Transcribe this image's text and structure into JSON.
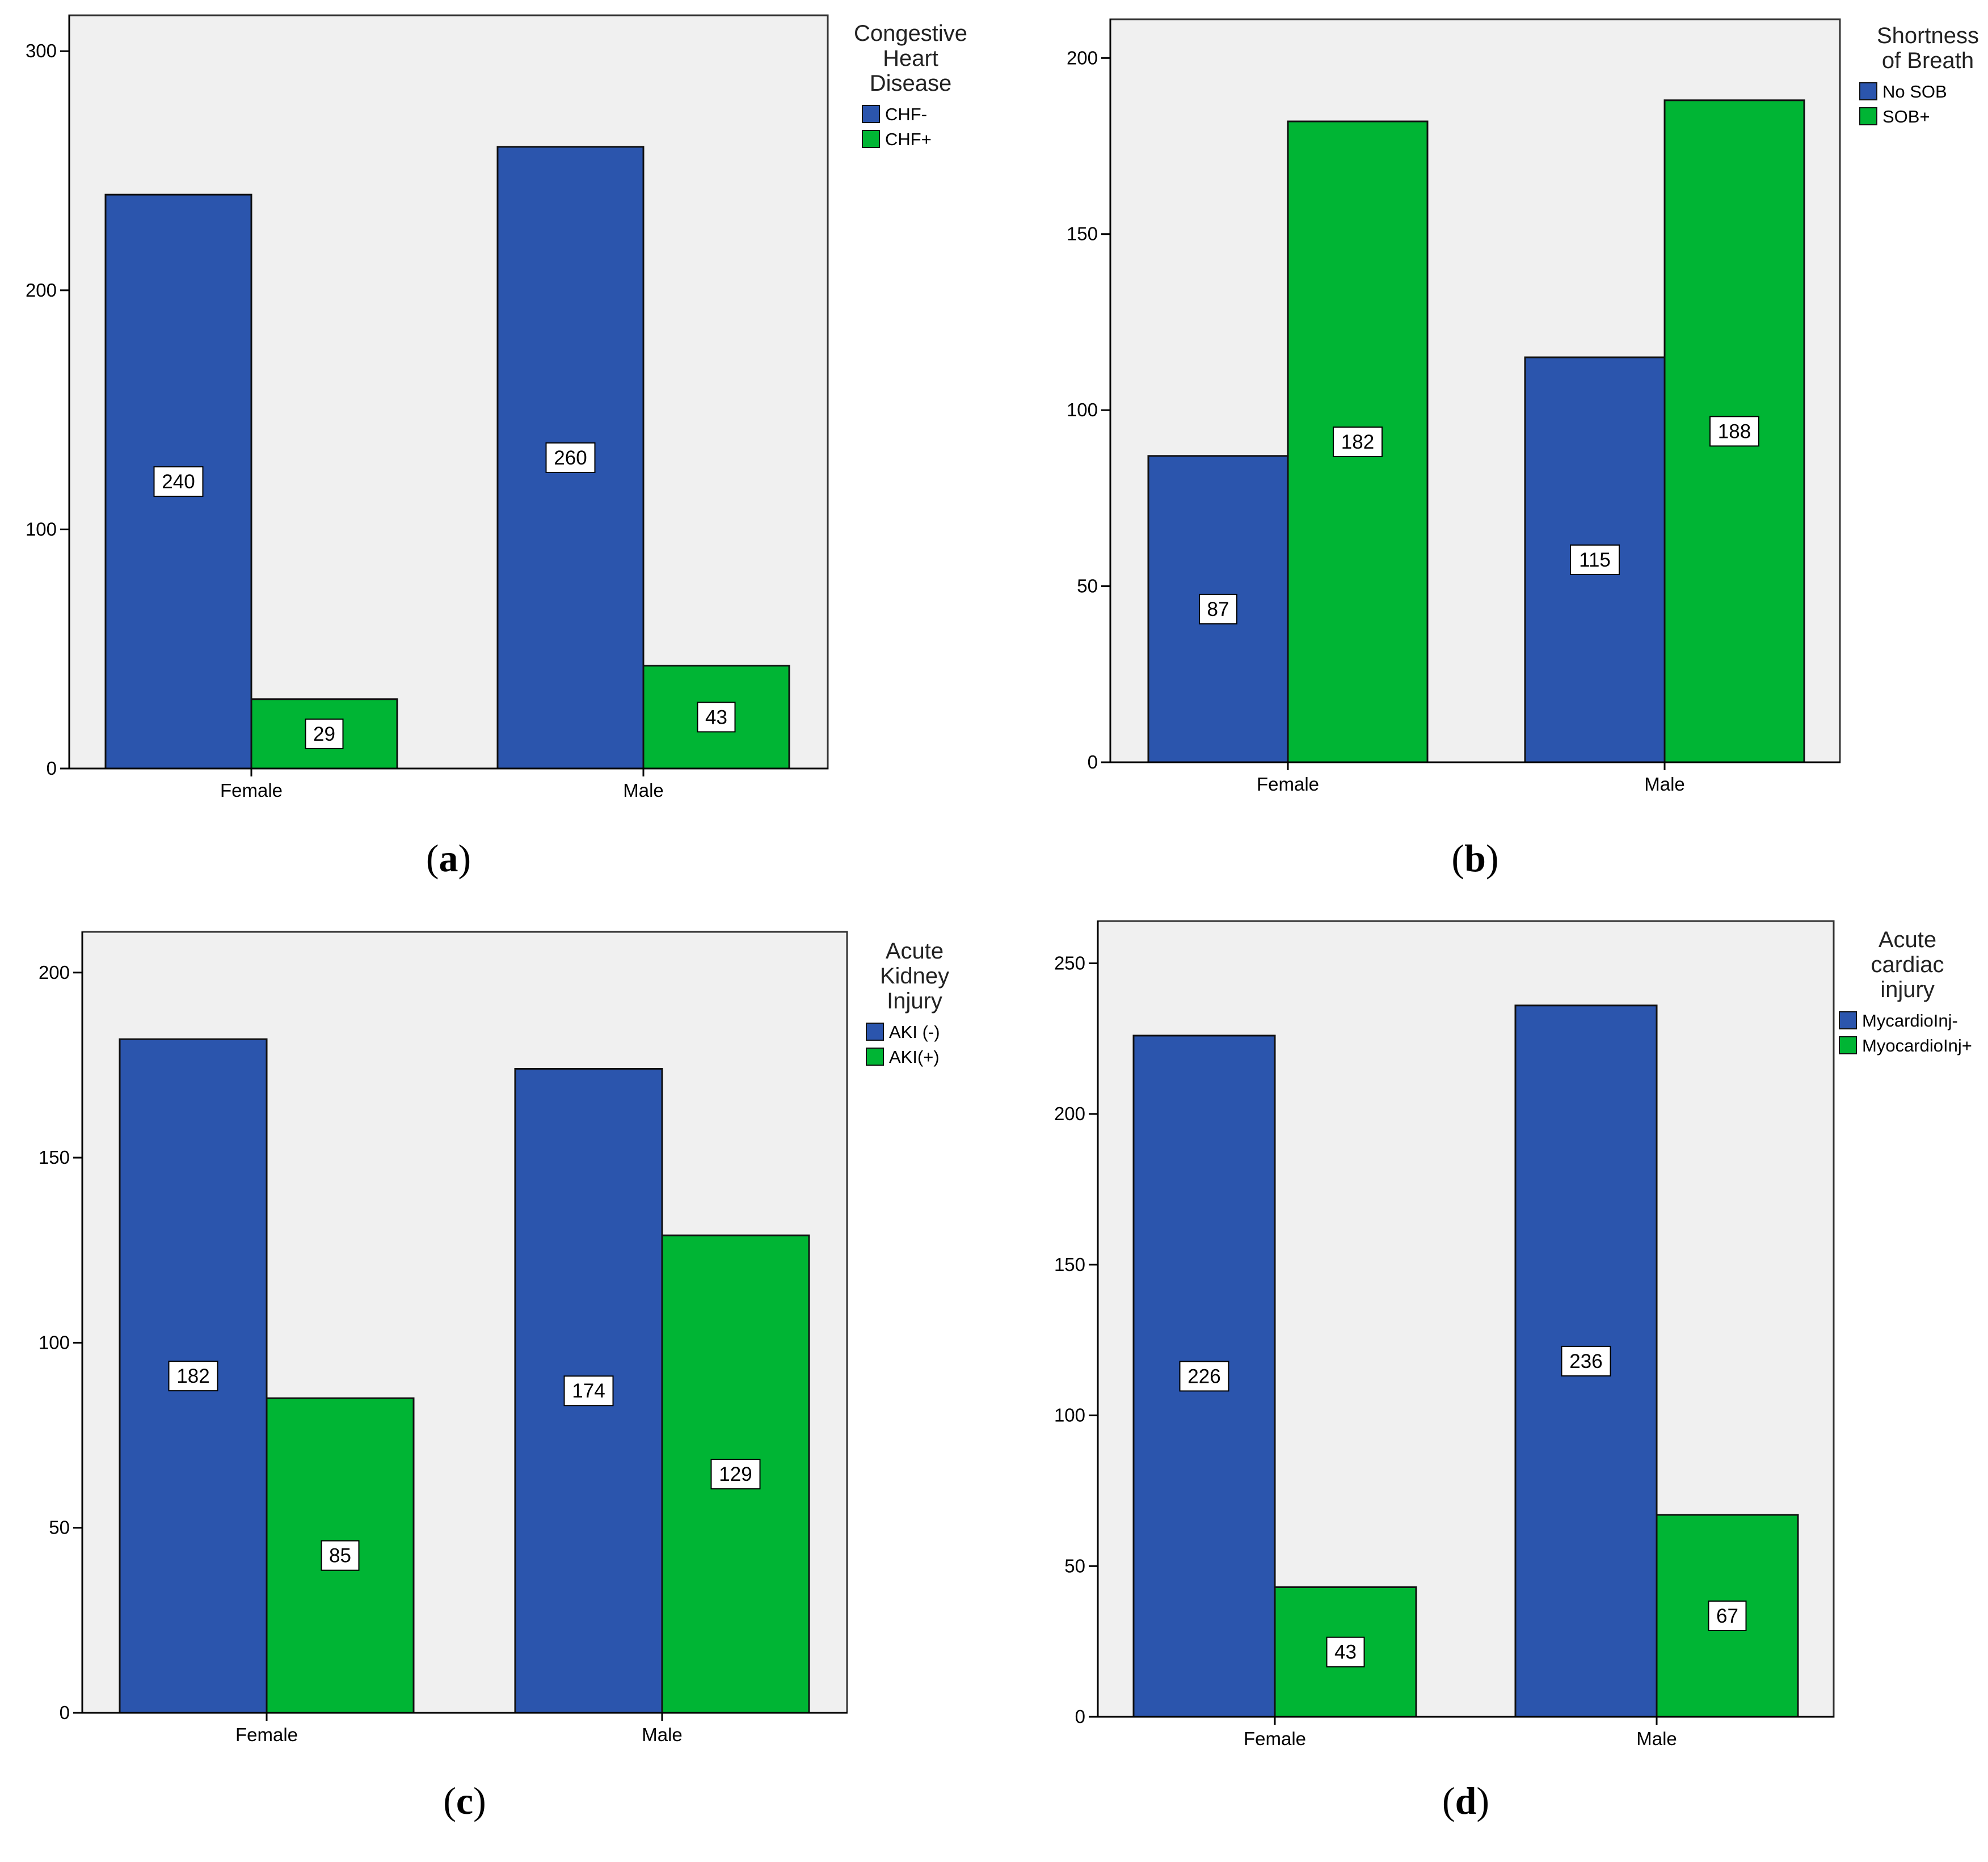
{
  "colors": {
    "series_negative": "#2b55ad",
    "series_positive": "#00b534",
    "plot_background": "#f0f0f0",
    "axis": "#000000"
  },
  "chart_data": [
    {
      "panel": "a",
      "type": "bar",
      "title": "",
      "xlabel": "",
      "ylabel": "",
      "categories": [
        "Female",
        "Male"
      ],
      "legend_title": [
        "Congestive",
        "Heart",
        "Disease"
      ],
      "legend_position": "top-right",
      "series": [
        {
          "name": "CHF-",
          "values": [
            240,
            260
          ]
        },
        {
          "name": "CHF+",
          "values": [
            29,
            43
          ]
        }
      ],
      "yticks": [
        0,
        100,
        200,
        300
      ],
      "ylim": [
        0,
        315
      ],
      "grid": false
    },
    {
      "panel": "b",
      "type": "bar",
      "title": "",
      "xlabel": "",
      "ylabel": "",
      "categories": [
        "Female",
        "Male"
      ],
      "legend_title": [
        "Shortness",
        "of Breath"
      ],
      "legend_position": "top-right",
      "series": [
        {
          "name": "No SOB",
          "values": [
            87,
            115
          ]
        },
        {
          "name": "SOB+",
          "values": [
            182,
            188
          ]
        }
      ],
      "yticks": [
        0,
        50,
        100,
        150,
        200
      ],
      "ylim": [
        0,
        211
      ],
      "grid": false
    },
    {
      "panel": "c",
      "type": "bar",
      "title": "",
      "xlabel": "",
      "ylabel": "",
      "categories": [
        "Female",
        "Male"
      ],
      "legend_title": [
        "Acute",
        "Kidney",
        "Injury"
      ],
      "legend_position": "top-right",
      "series": [
        {
          "name": "AKI (-)",
          "values": [
            182,
            174
          ]
        },
        {
          "name": "AKI(+)",
          "values": [
            85,
            129
          ]
        }
      ],
      "yticks": [
        0,
        50,
        100,
        150,
        200
      ],
      "ylim": [
        0,
        211
      ],
      "grid": false
    },
    {
      "panel": "d",
      "type": "bar",
      "title": "",
      "xlabel": "",
      "ylabel": "",
      "categories": [
        "Female",
        "Male"
      ],
      "legend_title": [
        "Acute",
        "cardiac",
        "injury"
      ],
      "legend_position": "top-right",
      "series": [
        {
          "name": "MycardioInj-",
          "values": [
            226,
            236
          ]
        },
        {
          "name": "MyocardioInj+",
          "values": [
            43,
            67
          ]
        }
      ],
      "yticks": [
        0,
        50,
        100,
        150,
        200,
        250
      ],
      "ylim": [
        0,
        264
      ],
      "grid": false
    }
  ]
}
